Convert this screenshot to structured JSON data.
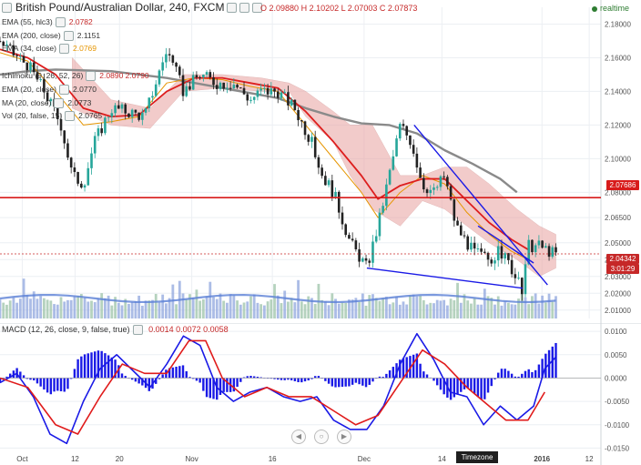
{
  "header": {
    "symbol_title": "British Pound/Australian Dollar, 240, FXCM",
    "ohlc": {
      "o": "O 2.09880",
      "h": "H 2.10202",
      "l": "L 2.07003",
      "c": "C 2.07873"
    },
    "realtime_label": "realtime"
  },
  "overlays": [
    {
      "name": "EMA (55, hlc3)",
      "value": "2.0782",
      "color": "#c62828"
    },
    {
      "name": "EMA (200, close)",
      "value": "2.1151",
      "color": "#333333"
    },
    {
      "name": "EMA (34, close)",
      "value": "2.0769",
      "color": "#e69500"
    },
    {
      "name": "Ichimoku (9, 26, 52, 26)",
      "value": "2.0890  2.0790",
      "color": "#c62828"
    },
    {
      "name": "EMA (20, close)",
      "value": "2.0770",
      "color": "#333333"
    },
    {
      "name": "MA (20, close)",
      "value": "2.0773",
      "color": "#333333"
    },
    {
      "name": "Vol (20, false, 15)",
      "value": "2.0765",
      "color": "#333333"
    }
  ],
  "macd_header": {
    "name": "MACD (12, 26, close, 9, false, true)",
    "values": "0.0014  0.0072  0.0058"
  },
  "timezone_label": "Timezone",
  "price_tags": {
    "resistance": "2.07686",
    "last": "2.04342",
    "countdown": "3:01:29"
  },
  "colors": {
    "up": "#26a69a",
    "down": "#222222",
    "ema_red": "#dd1e1e",
    "ema200": "#8a8a8a",
    "cloud": "#e9a2a0",
    "trend": "#1a1ae6",
    "hline": "#d81b1b",
    "macd": "#1a1ae6",
    "signal": "#e01b1b",
    "hist": "#1a1ae6",
    "volume": "#5a7fd6"
  },
  "chart_data": [
    {
      "type": "candlestick",
      "title": "British Pound/Australian Dollar, 240, FXCM",
      "x_tick_labels": [
        "Oct",
        "12",
        "20",
        "Nov",
        "16",
        "Dec",
        "14",
        "2016",
        "12"
      ],
      "y_tick_labels": [
        "2.18000",
        "2.16000",
        "2.14000",
        "2.12000",
        "2.10000",
        "2.08000",
        "2.06500",
        "2.05000",
        "2.04000",
        "2.03000",
        "2.02000",
        "2.01000"
      ],
      "ylim": [
        2.005,
        2.19
      ],
      "horizontal_line": 2.07686,
      "last_price": 2.04342,
      "path_anchors_t": [
        0,
        0.02,
        0.05,
        0.08,
        0.11,
        0.13,
        0.15,
        0.17,
        0.2,
        0.23,
        0.26,
        0.3,
        0.33,
        0.36,
        0.39,
        0.42,
        0.45,
        0.47,
        0.5,
        0.53,
        0.56,
        0.58,
        0.6,
        0.63,
        0.66,
        0.68,
        0.7,
        0.72,
        0.74,
        0.76,
        0.78,
        0.8,
        0.82,
        0.85,
        0.88,
        0.9,
        0.92,
        0.94,
        0.95,
        0.97,
        1.0
      ],
      "path_anchors_price": [
        2.17,
        2.163,
        2.156,
        2.14,
        2.12,
        2.09,
        2.085,
        2.11,
        2.13,
        2.128,
        2.125,
        2.165,
        2.14,
        2.15,
        2.145,
        2.145,
        2.135,
        2.14,
        2.14,
        2.13,
        2.11,
        2.09,
        2.08,
        2.05,
        2.035,
        2.06,
        2.09,
        2.12,
        2.11,
        2.085,
        2.08,
        2.09,
        2.06,
        2.045,
        2.04,
        2.045,
        2.035,
        2.02,
        2.048,
        2.048,
        2.043
      ],
      "ema200": [
        [
          0.0,
          2.15
        ],
        [
          0.05,
          2.152
        ],
        [
          0.1,
          2.153
        ],
        [
          0.2,
          2.152
        ],
        [
          0.3,
          2.148
        ],
        [
          0.4,
          2.142
        ],
        [
          0.5,
          2.136
        ],
        [
          0.55,
          2.13
        ],
        [
          0.6,
          2.125
        ],
        [
          0.65,
          2.121
        ],
        [
          0.7,
          2.12
        ],
        [
          0.75,
          2.115
        ],
        [
          0.8,
          2.105
        ],
        [
          0.85,
          2.097
        ],
        [
          0.9,
          2.088
        ],
        [
          0.93,
          2.08
        ]
      ],
      "ema55": [
        [
          0.0,
          2.165
        ],
        [
          0.05,
          2.16
        ],
        [
          0.1,
          2.15
        ],
        [
          0.15,
          2.13
        ],
        [
          0.2,
          2.125
        ],
        [
          0.25,
          2.126
        ],
        [
          0.3,
          2.14
        ],
        [
          0.35,
          2.148
        ],
        [
          0.4,
          2.148
        ],
        [
          0.45,
          2.145
        ],
        [
          0.5,
          2.142
        ],
        [
          0.55,
          2.128
        ],
        [
          0.6,
          2.11
        ],
        [
          0.65,
          2.09
        ],
        [
          0.68,
          2.076
        ],
        [
          0.72,
          2.084
        ],
        [
          0.76,
          2.088
        ],
        [
          0.8,
          2.088
        ],
        [
          0.84,
          2.075
        ],
        [
          0.88,
          2.062
        ],
        [
          0.92,
          2.052
        ],
        [
          0.95,
          2.046
        ]
      ],
      "ema34": [
        [
          0.0,
          2.163
        ],
        [
          0.05,
          2.158
        ],
        [
          0.1,
          2.14
        ],
        [
          0.15,
          2.12
        ],
        [
          0.2,
          2.122
        ],
        [
          0.25,
          2.125
        ],
        [
          0.3,
          2.145
        ],
        [
          0.35,
          2.148
        ],
        [
          0.4,
          2.147
        ],
        [
          0.45,
          2.143
        ],
        [
          0.5,
          2.14
        ],
        [
          0.55,
          2.12
        ],
        [
          0.6,
          2.1
        ],
        [
          0.65,
          2.08
        ],
        [
          0.68,
          2.065
        ],
        [
          0.72,
          2.08
        ],
        [
          0.76,
          2.09
        ],
        [
          0.8,
          2.085
        ],
        [
          0.84,
          2.068
        ],
        [
          0.88,
          2.055
        ],
        [
          0.92,
          2.045
        ],
        [
          0.95,
          2.04
        ]
      ],
      "cloud": [
        [
          0.13,
          2.16,
          2.13
        ],
        [
          0.2,
          2.135,
          2.12
        ],
        [
          0.27,
          2.13,
          2.118
        ],
        [
          0.33,
          2.15,
          2.14
        ],
        [
          0.4,
          2.15,
          2.142
        ],
        [
          0.47,
          2.148,
          2.14
        ],
        [
          0.52,
          2.145,
          2.14
        ],
        [
          0.55,
          2.14,
          2.125
        ],
        [
          0.6,
          2.128,
          2.11
        ],
        [
          0.63,
          2.12,
          2.09
        ],
        [
          0.67,
          2.12,
          2.07
        ],
        [
          0.72,
          2.09,
          2.06
        ],
        [
          0.76,
          2.09,
          2.075
        ],
        [
          0.8,
          2.095,
          2.07
        ],
        [
          0.84,
          2.095,
          2.06
        ],
        [
          0.88,
          2.085,
          2.05
        ],
        [
          0.93,
          2.07,
          2.04
        ],
        [
          0.97,
          2.06,
          2.03
        ],
        [
          1.0,
          2.055,
          2.035
        ]
      ],
      "trendlines": [
        [
          [
            0.745,
            2.12
          ],
          [
            0.985,
            2.025
          ]
        ],
        [
          [
            0.66,
            2.035
          ],
          [
            0.94,
            2.023
          ]
        ],
        [
          [
            0.86,
            2.06
          ],
          [
            0.96,
            2.038
          ]
        ]
      ]
    },
    {
      "type": "histogram",
      "title": "MACD (12, 26, close, 9, false, true)",
      "y_tick_labels": [
        "0.0100",
        "0.0050",
        "0.0000",
        "-0.0050",
        "-0.0100",
        "-0.0150"
      ],
      "ylim": [
        -0.0155,
        0.011
      ],
      "macd": [
        [
          0.0,
          -0.001
        ],
        [
          0.03,
          0.001
        ],
        [
          0.06,
          -0.004
        ],
        [
          0.09,
          -0.012
        ],
        [
          0.12,
          -0.014
        ],
        [
          0.15,
          -0.005
        ],
        [
          0.18,
          0.002
        ],
        [
          0.21,
          0.005
        ],
        [
          0.24,
          0.0015
        ],
        [
          0.27,
          -0.002
        ],
        [
          0.3,
          0.003
        ],
        [
          0.33,
          0.009
        ],
        [
          0.36,
          0.007
        ],
        [
          0.39,
          -0.002
        ],
        [
          0.42,
          -0.005
        ],
        [
          0.45,
          -0.003
        ],
        [
          0.48,
          -0.002
        ],
        [
          0.51,
          -0.004
        ],
        [
          0.54,
          -0.005
        ],
        [
          0.57,
          -0.004
        ],
        [
          0.6,
          -0.009
        ],
        [
          0.63,
          -0.011
        ],
        [
          0.66,
          -0.011
        ],
        [
          0.69,
          -0.006
        ],
        [
          0.72,
          0.003
        ],
        [
          0.75,
          0.0095
        ],
        [
          0.78,
          0.004
        ],
        [
          0.81,
          -0.003
        ],
        [
          0.84,
          -0.004
        ],
        [
          0.87,
          -0.01
        ],
        [
          0.9,
          -0.006
        ],
        [
          0.93,
          -0.009
        ],
        [
          0.96,
          -0.006
        ],
        [
          0.98,
          0.002
        ],
        [
          1.0,
          0.0045
        ]
      ],
      "signal": [
        [
          0.0,
          0.0
        ],
        [
          0.05,
          -0.002
        ],
        [
          0.1,
          -0.01
        ],
        [
          0.14,
          -0.012
        ],
        [
          0.18,
          -0.004
        ],
        [
          0.22,
          0.003
        ],
        [
          0.26,
          0.001
        ],
        [
          0.3,
          0.001
        ],
        [
          0.34,
          0.008
        ],
        [
          0.37,
          0.008
        ],
        [
          0.4,
          0.0
        ],
        [
          0.44,
          -0.004
        ],
        [
          0.48,
          -0.002
        ],
        [
          0.52,
          -0.004
        ],
        [
          0.56,
          -0.004
        ],
        [
          0.6,
          -0.007
        ],
        [
          0.64,
          -0.01
        ],
        [
          0.68,
          -0.008
        ],
        [
          0.72,
          -0.001
        ],
        [
          0.76,
          0.006
        ],
        [
          0.8,
          0.003
        ],
        [
          0.84,
          -0.002
        ],
        [
          0.88,
          -0.006
        ],
        [
          0.91,
          -0.009
        ],
        [
          0.95,
          -0.009
        ],
        [
          0.98,
          -0.003
        ]
      ]
    }
  ]
}
